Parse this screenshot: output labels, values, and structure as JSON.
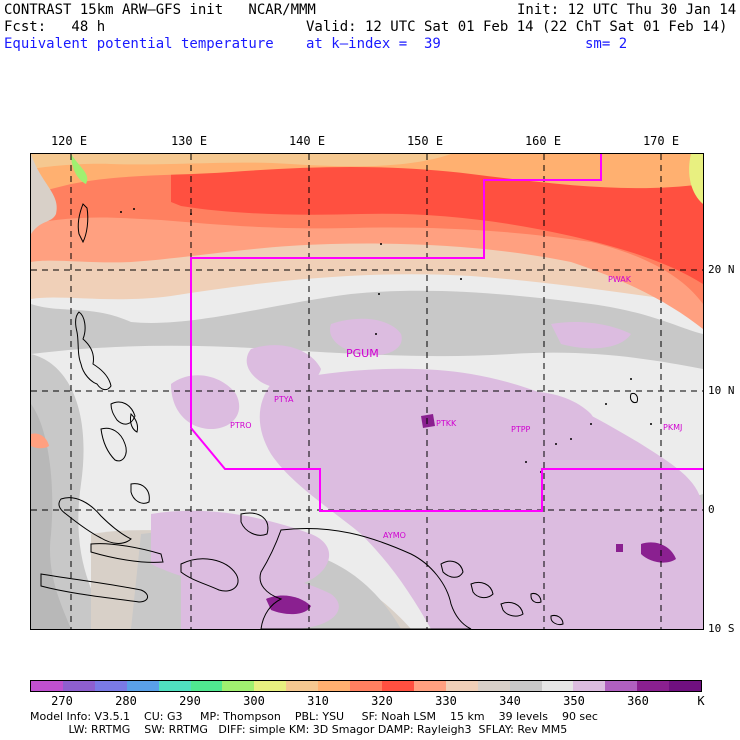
{
  "header": {
    "line1_left": "CONTRAST 15km ARW—GFS init   NCAR/MMM",
    "line1_right": "Init: 12 UTC Thu 30 Jan 14",
    "line2_left": "Fcst:   48 h",
    "line2_right": "Valid: 12 UTC Sat 01 Feb 14 (22 ChT Sat 01 Feb 14)",
    "line3_left": "Equivalent potential temperature",
    "line3_mid": "at k—index =  39",
    "line3_right": "sm= 2"
  },
  "map": {
    "lon_labels": [
      "120 E",
      "130 E",
      "140 E",
      "150 E",
      "160 E",
      "170 E"
    ],
    "lat_labels": [
      "20 N",
      "10 N",
      "0",
      "10 S"
    ],
    "stations": [
      "PWAK",
      "PGUM",
      "PTYA",
      "PTRO",
      "PTKK",
      "PTPP",
      "PKMJ",
      "AYMO"
    ]
  },
  "colorbar": {
    "colors": [
      "#c050d0",
      "#8e5fcf",
      "#7a7ae6",
      "#5aa0e8",
      "#50e0c0",
      "#50e890",
      "#a0f070",
      "#e8f080",
      "#f5c890",
      "#ffb070",
      "#ff8060",
      "#ff5040",
      "#ffa080",
      "#f0d0b8",
      "#d8d0c8",
      "#c8c8c8",
      "#e6e6e6",
      "#dcbce0",
      "#b060c0",
      "#8a2090",
      "#701080"
    ],
    "labels": [
      "270",
      "280",
      "290",
      "300",
      "310",
      "320",
      "330",
      "340",
      "350",
      "360"
    ],
    "unit": "K"
  },
  "footer": {
    "line1": "Model Info: V3.5.1    CU: G3     MP: Thompson    PBL: YSU     SF: Noah LSM    15 km    39 levels    90 sec",
    "line2": "           LW: RRTMG    SW: RRTMG   DIFF: simple KM: 3D Smagor DAMP: Rayleigh3  SFLAY: Rev MM5"
  }
}
